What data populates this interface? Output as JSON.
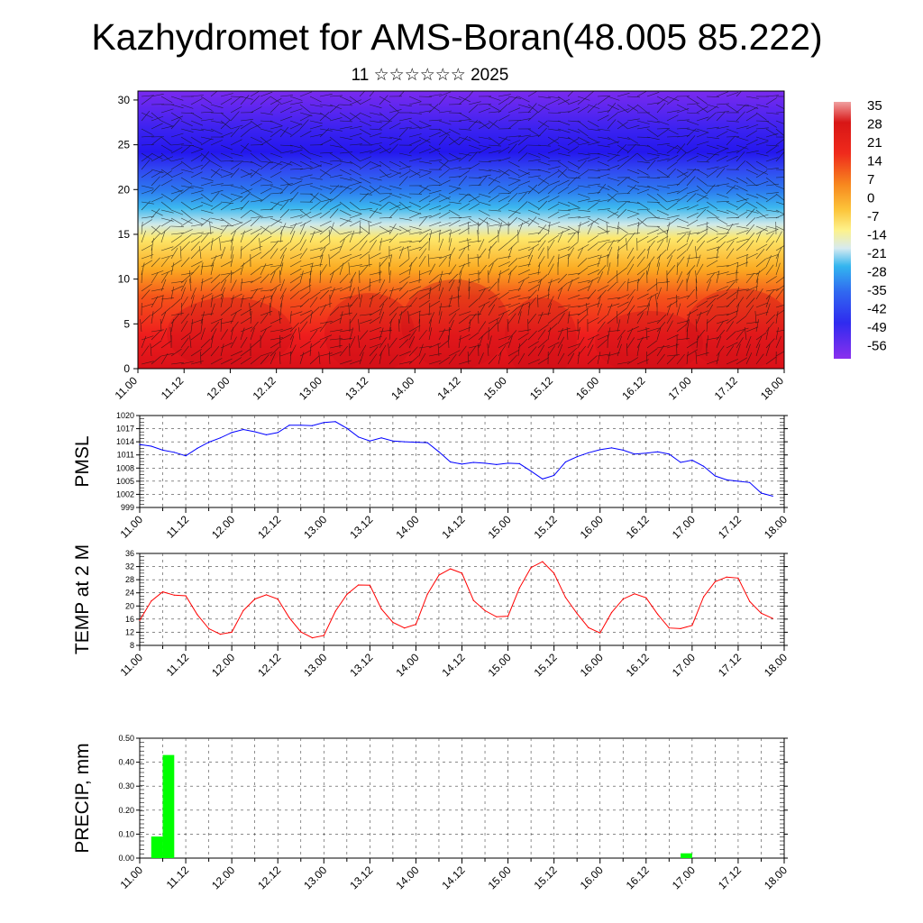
{
  "title": "Kazhydromet for AMS-Boran(48.005 85.222)",
  "subtitle": "11 ☆☆☆☆☆☆ 2025",
  "time_labels": [
    "11.00",
    "11.12",
    "12.00",
    "12.12",
    "13.00",
    "13.12",
    "14.00",
    "14.12",
    "15.00",
    "15.12",
    "16.00",
    "16.12",
    "17.00",
    "17.12",
    "18.00"
  ],
  "chart_data": [
    {
      "type": "heatmap",
      "name": "upper-air",
      "x": [
        "11.00",
        "11.12",
        "12.00",
        "12.12",
        "13.00",
        "13.12",
        "14.00",
        "14.12",
        "15.00",
        "15.12",
        "16.00",
        "16.12",
        "17.00",
        "17.12",
        "18.00"
      ],
      "y_ticks": [
        0,
        5,
        10,
        15,
        20,
        25,
        30
      ],
      "ylim": [
        0,
        31
      ],
      "colorbar_labels": [
        "35",
        "28",
        "21",
        "14",
        "7",
        "0",
        "-7",
        "-14",
        "-21",
        "-28",
        "-35",
        "-42",
        "-49",
        "-56"
      ],
      "colors": {
        "warm": "#e8141b",
        "mid": "#fef88a",
        "cold": "#2d1cf1",
        "top": "#7d2cee"
      },
      "overlay": "wind barbs"
    },
    {
      "type": "line",
      "name": "pmsl",
      "ylabel": "PMSL",
      "y_ticks": [
        999,
        1002,
        1005,
        1008,
        1011,
        1014,
        1017,
        1020
      ],
      "ylim": [
        999,
        1020
      ],
      "color": "#0000ff",
      "x": [
        0,
        3,
        6,
        9,
        12,
        15,
        18,
        21,
        24,
        27,
        30,
        33,
        36,
        39,
        42,
        45,
        48,
        51,
        54,
        57,
        60,
        63,
        66,
        69,
        72,
        75,
        78,
        81,
        84,
        87,
        90,
        93,
        96,
        99,
        102,
        105,
        108,
        111,
        114,
        117,
        120,
        123,
        126,
        129,
        132,
        135,
        138,
        141,
        144,
        147,
        150,
        153,
        156,
        159,
        162,
        165
      ],
      "values": [
        1013.4,
        1013.0,
        1012.1,
        1011.6,
        1010.8,
        1012.5,
        1013.9,
        1014.9,
        1016.1,
        1016.8,
        1016.3,
        1015.6,
        1016.1,
        1017.8,
        1017.8,
        1017.7,
        1018.4,
        1018.6,
        1017.1,
        1015.1,
        1014.2,
        1014.9,
        1014.2,
        1014.0,
        1013.9,
        1013.8,
        1011.7,
        1009.4,
        1008.9,
        1009.3,
        1009.1,
        1008.8,
        1009.1,
        1009.0,
        1007.3,
        1005.5,
        1006.3,
        1009.4,
        1010.6,
        1011.5,
        1012.2,
        1012.6,
        1012.1,
        1011.2,
        1011.4,
        1011.7,
        1011.2,
        1009.3,
        1009.8,
        1008.4,
        1006.2,
        1005.3,
        1005.0,
        1004.7,
        1002.3,
        1001.6
      ]
    },
    {
      "type": "line",
      "name": "temp-2m",
      "ylabel": "TEMP at 2 M",
      "y_ticks": [
        8,
        12,
        16,
        20,
        24,
        28,
        32,
        36
      ],
      "ylim": [
        8,
        36
      ],
      "color": "#ff0000",
      "x": [
        0,
        3,
        6,
        9,
        12,
        15,
        18,
        21,
        24,
        27,
        30,
        33,
        36,
        39,
        42,
        45,
        48,
        51,
        54,
        57,
        60,
        63,
        66,
        69,
        72,
        75,
        78,
        81,
        84,
        87,
        90,
        93,
        96,
        99,
        102,
        105,
        108,
        111,
        114,
        117,
        120,
        123,
        126,
        129,
        132,
        135,
        138,
        141,
        144,
        147,
        150,
        153,
        156,
        159,
        162,
        165
      ],
      "values": [
        15.6,
        21.5,
        24.3,
        23.3,
        23.1,
        17.4,
        13.1,
        11.4,
        12.0,
        18.6,
        22.1,
        23.4,
        22.1,
        16.4,
        12.1,
        10.3,
        11.0,
        18.4,
        23.5,
        26.4,
        26.3,
        19.1,
        15.0,
        13.3,
        14.4,
        23.6,
        29.4,
        31.3,
        30.0,
        21.7,
        18.6,
        16.7,
        16.9,
        25.5,
        31.7,
        33.5,
        30.0,
        22.6,
        17.7,
        13.4,
        11.8,
        18.0,
        22.1,
        23.7,
        22.5,
        17.5,
        13.3,
        13.1,
        14.1,
        22.8,
        27.4,
        28.8,
        28.5,
        21.4,
        17.8,
        16.2
      ]
    },
    {
      "type": "bar",
      "name": "precip",
      "ylabel": "PRECIP, mm",
      "y_ticks": [
        "0.00",
        "0.10",
        "0.20",
        "0.30",
        "0.40",
        "0.50"
      ],
      "ylim": [
        0,
        0.5
      ],
      "color": "#00ff00",
      "bars": [
        {
          "x_start": 3,
          "x_end": 6,
          "value": 0.09
        },
        {
          "x_start": 6,
          "x_end": 9,
          "value": 0.43
        },
        {
          "x_start": 141,
          "x_end": 144,
          "value": 0.02
        }
      ]
    }
  ]
}
